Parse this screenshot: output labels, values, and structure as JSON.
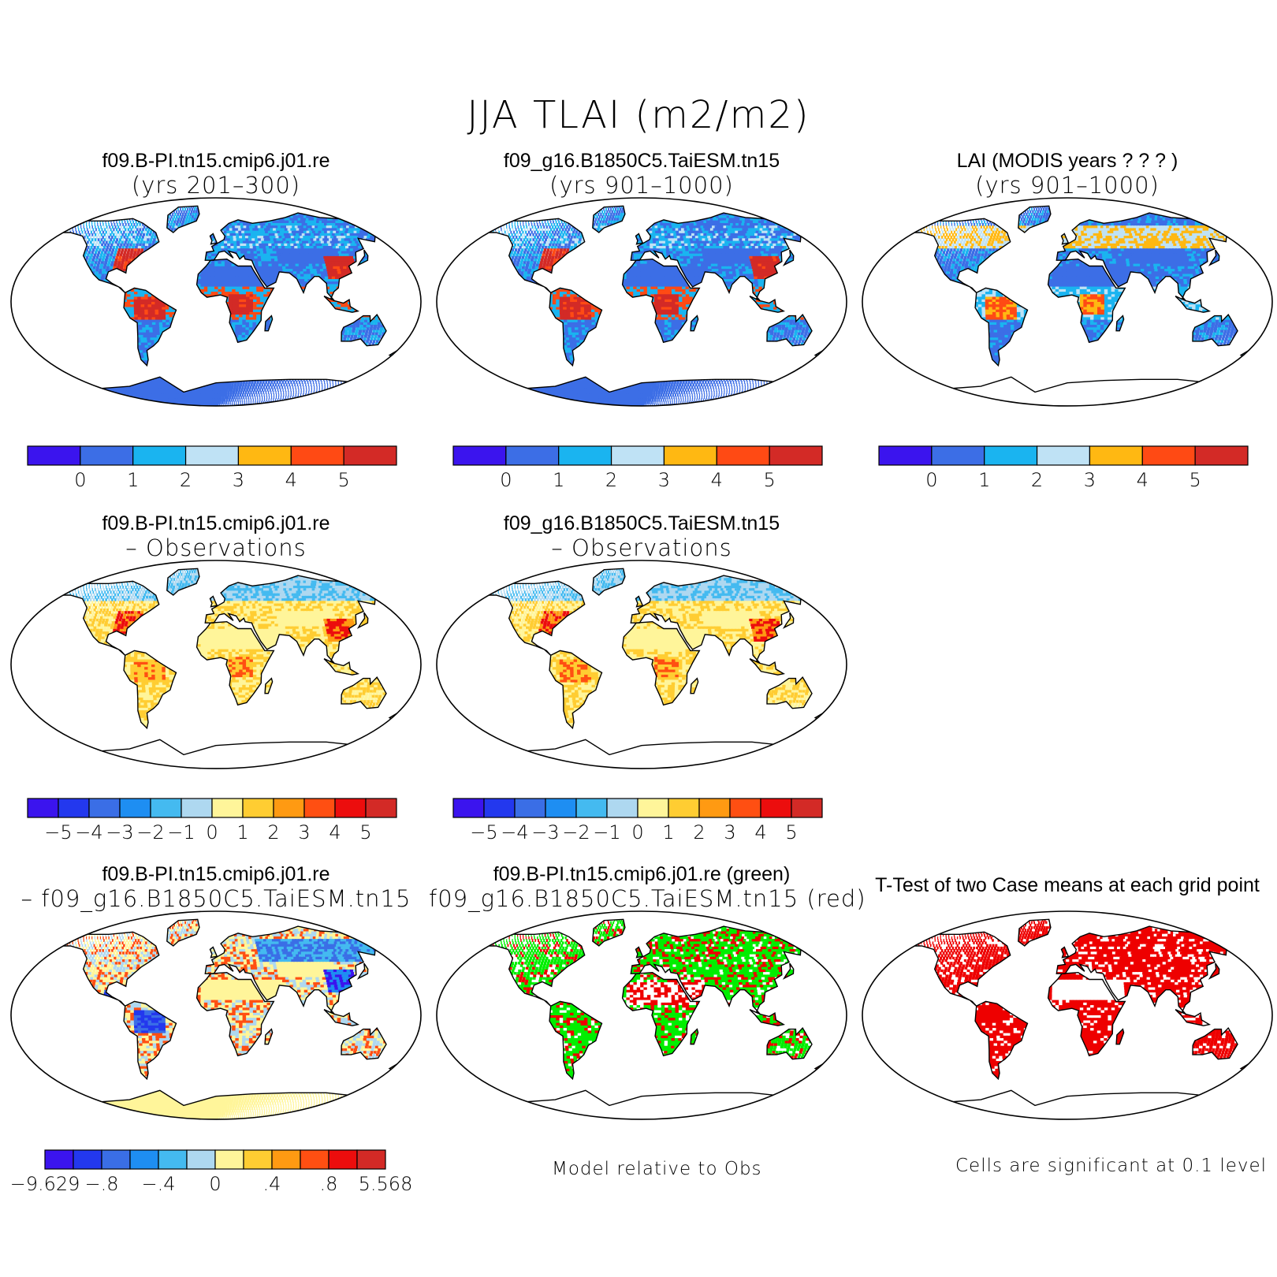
{
  "title": "JJA TLAI (m2/m2)",
  "colors": {
    "abs": [
      "#3b14ee",
      "#3c6ee6",
      "#1ab4f0",
      "#bfe2f5",
      "#ffb812",
      "#ff4a14",
      "#d32a26"
    ],
    "diff": [
      "#3b14ee",
      "#2338ee",
      "#3a6ee6",
      "#1e8ef2",
      "#44baf0",
      "#aed8f0",
      "#fff59a",
      "#ffcd32",
      "#ff9a12",
      "#ff4f12",
      "#ec0d0d",
      "#d32a26"
    ],
    "green": "#00ee00",
    "red": "#ee0000",
    "ocean": "#ffffff"
  },
  "panels": [
    {
      "title1": "f09.B-PI.tn15.cmip6.j01.re",
      "title2": "(yrs 201–300)",
      "map": "abs1",
      "colorbar": {
        "type": "abs",
        "labels": [
          "0",
          "1",
          "2",
          "3",
          "4",
          "5"
        ]
      }
    },
    {
      "title1": "f09_g16.B1850C5.TaiESM.tn15",
      "title2": "(yrs 901–1000)",
      "map": "abs2",
      "colorbar": {
        "type": "abs",
        "labels": [
          "0",
          "1",
          "2",
          "3",
          "4",
          "5"
        ]
      }
    },
    {
      "title1": "LAI (MODIS years ? ? ? )",
      "title2": "(yrs 901–1000)",
      "map": "obs",
      "colorbar": {
        "type": "abs",
        "labels": [
          "0",
          "1",
          "2",
          "3",
          "4",
          "5"
        ]
      }
    },
    {
      "title1": "f09.B-PI.tn15.cmip6.j01.re",
      "title2": "– Observations",
      "map": "diff1",
      "colorbar": {
        "type": "diff",
        "labels": [
          "−5",
          "−4",
          "−3",
          "−2",
          "−1",
          "0",
          "1",
          "2",
          "3",
          "4",
          "5"
        ]
      }
    },
    {
      "title1": "f09_g16.B1850C5.TaiESM.tn15",
      "title2": "– Observations",
      "map": "diff2",
      "colorbar": {
        "type": "diff",
        "labels": [
          "−5",
          "−4",
          "−3",
          "−2",
          "−1",
          "0",
          "1",
          "2",
          "3",
          "4",
          "5"
        ]
      }
    },
    {
      "title1": "f09.B-PI.tn15.cmip6.j01.re",
      "title2": "– f09_g16.B1850C5.TaiESM.tn15",
      "map": "mdiff",
      "colorbar": {
        "type": "mdiff",
        "labels": [
          "−9.629",
          "−.8",
          "−.4",
          "0",
          ".4",
          ".8",
          "5.568"
        ]
      }
    },
    {
      "title1": "f09.B-PI.tn15.cmip6.j01.re (green)",
      "title2": "f09_g16.B1850C5.TaiESM.tn15 (red)",
      "map": "greenred",
      "note": "Model relative to Obs"
    },
    {
      "title1": "T-Test of two Case means at each grid point",
      "title2": "",
      "map": "ttest",
      "note": "Cells are significant at 0.1 level"
    }
  ]
}
